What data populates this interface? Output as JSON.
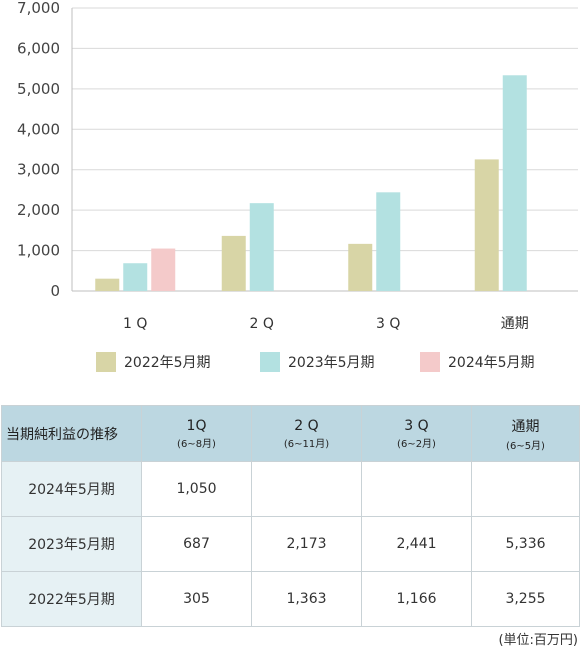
{
  "chart_data": {
    "type": "bar",
    "categories": [
      "1Q",
      "2Q",
      "3Q",
      "通期"
    ],
    "category_labels": [
      "1 Q",
      "2 Q",
      "3 Q",
      "通期"
    ],
    "series": [
      {
        "name": "2022年5月期",
        "color": "#d8d5a6",
        "values": [
          305,
          1363,
          1166,
          3255
        ]
      },
      {
        "name": "2023年5月期",
        "color": "#b3e1e1",
        "values": [
          687,
          2173,
          2441,
          5336
        ]
      },
      {
        "name": "2024年5月期",
        "color": "#f4caca",
        "values": [
          1050,
          null,
          null,
          null
        ]
      }
    ],
    "ylim": [
      0,
      7000
    ],
    "yticks": [
      0,
      1000,
      2000,
      3000,
      4000,
      5000,
      6000,
      7000
    ],
    "ytick_labels": [
      "0",
      "1,000",
      "2,000",
      "3,000",
      "4,000",
      "5,000",
      "6,000",
      "7,000"
    ],
    "grid": true,
    "legend_position": "bottom"
  },
  "table": {
    "corner": "当期純利益の推移",
    "columns": [
      {
        "main": "1Q",
        "sub": "(6~8月)"
      },
      {
        "main": "2 Q",
        "sub": "(6~11月)"
      },
      {
        "main": "3 Q",
        "sub": "(6~2月)"
      },
      {
        "main": "通期",
        "sub": "(6~5月)"
      }
    ],
    "rows": [
      {
        "label": "2024年5月期",
        "cells": [
          "1,050",
          "",
          "",
          ""
        ]
      },
      {
        "label": "2023年5月期",
        "cells": [
          "687",
          "2,173",
          "2,441",
          "5,336"
        ]
      },
      {
        "label": "2022年5月期",
        "cells": [
          "305",
          "1,363",
          "1,166",
          "3,255"
        ]
      }
    ],
    "unit": "(単位:百万円)"
  }
}
